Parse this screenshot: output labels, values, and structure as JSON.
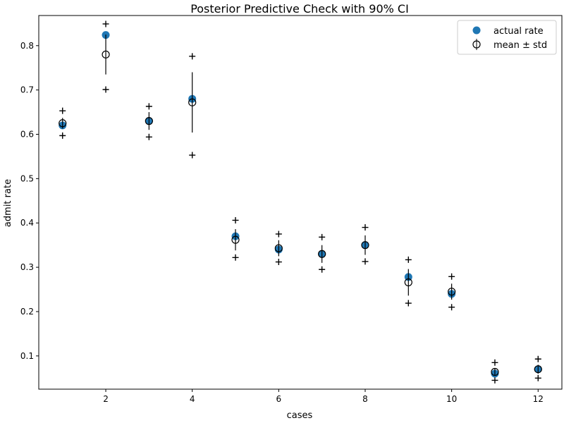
{
  "chart_data": {
    "type": "scatter",
    "title": "Posterior Predictive Check with 90% CI",
    "xlabel": "cases",
    "ylabel": "admit rate",
    "xlim": [
      0.45,
      12.55
    ],
    "ylim": [
      0.025,
      0.868
    ],
    "xticks": [
      2,
      4,
      6,
      8,
      10,
      12
    ],
    "yticks": [
      0.1,
      0.2,
      0.3,
      0.4,
      0.5,
      0.6,
      0.7,
      0.8
    ],
    "grid": false,
    "legend": {
      "placement": "top-right",
      "entries": [
        "actual rate",
        "mean ± std"
      ]
    },
    "colors": {
      "actual": "#1f77b4",
      "mean": "#000000",
      "ci": "#000000"
    },
    "x": [
      1,
      2,
      3,
      4,
      5,
      6,
      7,
      8,
      9,
      10,
      11,
      12
    ],
    "series": [
      {
        "name": "actual rate",
        "marker": "filled-circle",
        "values": [
          0.62,
          0.824,
          0.63,
          0.68,
          0.37,
          0.34,
          0.33,
          0.35,
          0.278,
          0.24,
          0.06,
          0.07
        ]
      },
      {
        "name": "mean ± std",
        "marker": "open-circle-errorbar",
        "values": [
          0.625,
          0.78,
          0.63,
          0.672,
          0.362,
          0.343,
          0.33,
          0.35,
          0.266,
          0.245,
          0.064,
          0.07
        ],
        "std": [
          0.012,
          0.045,
          0.02,
          0.068,
          0.024,
          0.018,
          0.02,
          0.022,
          0.03,
          0.018,
          0.008,
          0.01
        ]
      },
      {
        "name": "90% CI",
        "marker": "plus",
        "lower": [
          0.597,
          0.701,
          0.594,
          0.553,
          0.322,
          0.312,
          0.295,
          0.313,
          0.219,
          0.21,
          0.045,
          0.05
        ],
        "upper": [
          0.653,
          0.849,
          0.663,
          0.776,
          0.406,
          0.375,
          0.368,
          0.39,
          0.317,
          0.279,
          0.085,
          0.093
        ]
      }
    ]
  }
}
